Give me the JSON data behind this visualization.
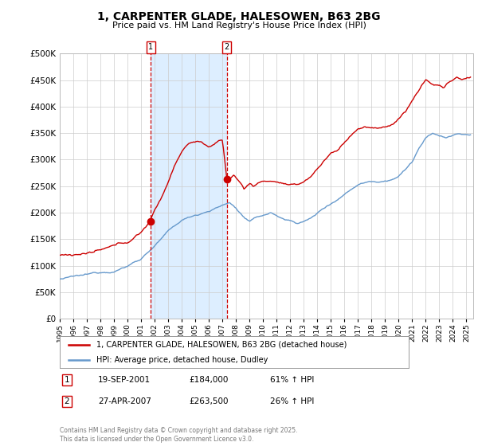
{
  "title": "1, CARPENTER GLADE, HALESOWEN, B63 2BG",
  "subtitle": "Price paid vs. HM Land Registry's House Price Index (HPI)",
  "legend_line1": "1, CARPENTER GLADE, HALESOWEN, B63 2BG (detached house)",
  "legend_line2": "HPI: Average price, detached house, Dudley",
  "footer": "Contains HM Land Registry data © Crown copyright and database right 2025.\nThis data is licensed under the Open Government Licence v3.0.",
  "sale1_date": "19-SEP-2001",
  "sale1_price": "£184,000",
  "sale1_hpi": "61% ↑ HPI",
  "sale2_date": "27-APR-2007",
  "sale2_price": "£263,500",
  "sale2_hpi": "26% ↑ HPI",
  "red_color": "#cc0000",
  "blue_color": "#6699cc",
  "shade_color": "#ddeeff",
  "background_color": "#ffffff",
  "grid_color": "#cccccc",
  "vline_color": "#cc0000",
  "ylim": [
    0,
    500000
  ],
  "yticks": [
    0,
    50000,
    100000,
    150000,
    200000,
    250000,
    300000,
    350000,
    400000,
    450000,
    500000
  ],
  "sale1_x": 2001.72,
  "sale1_y": 184000,
  "sale2_x": 2007.32,
  "sale2_y": 263500,
  "xmin": 1995,
  "xmax": 2025.5
}
